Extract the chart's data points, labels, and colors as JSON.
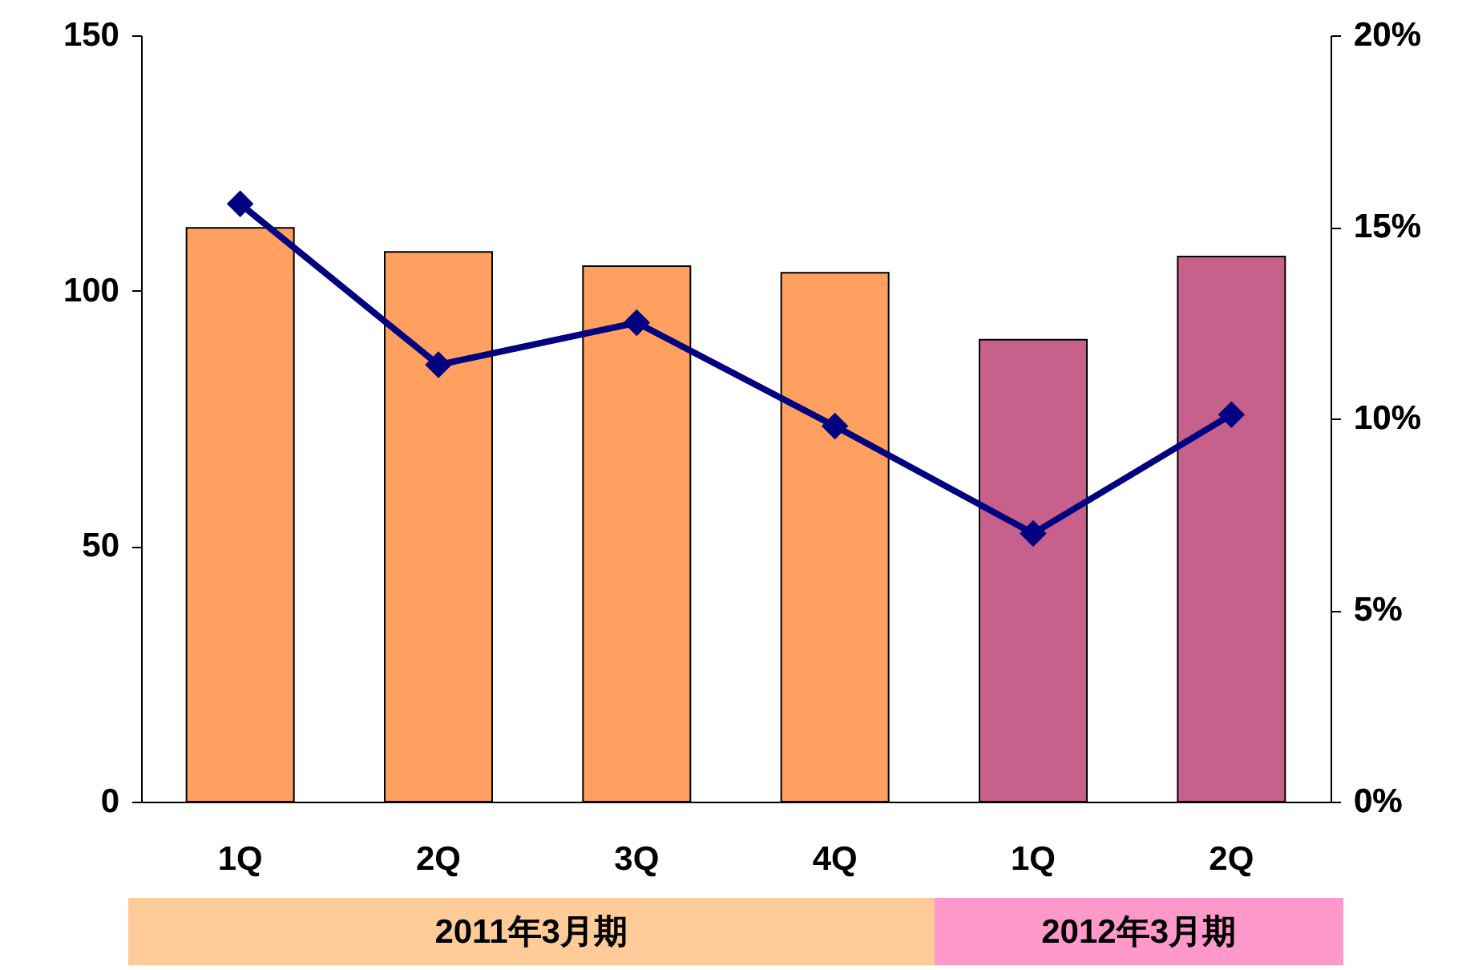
{
  "chart_data": {
    "type": "bar",
    "categories": [
      "1Q",
      "2Q",
      "3Q",
      "4Q",
      "1Q",
      "2Q"
    ],
    "series": [
      {
        "colors": [
          "#ffa060",
          "#ffa060",
          "#ffa060",
          "#ffa060",
          "#c8608c",
          "#c8608c"
        ],
        "values": [
          112.3,
          107.6,
          104.8,
          103.5,
          90.4,
          106.7
        ]
      },
      {
        "type": "line",
        "axis": "y2",
        "color": "#000080",
        "marker": "diamond",
        "values": [
          15.6,
          11.4,
          12.5,
          9.8,
          7.0,
          10.1
        ]
      }
    ],
    "ylim": [
      0,
      150
    ],
    "yticks": [
      0,
      50,
      100,
      150
    ],
    "y2lim": [
      0,
      20
    ],
    "y2ticks": [
      {
        "value": 0,
        "label": "0%"
      },
      {
        "value": 5,
        "label": "5%"
      },
      {
        "value": 10,
        "label": "10%"
      },
      {
        "value": 15,
        "label": "15%"
      },
      {
        "value": 20,
        "label": "20%"
      }
    ],
    "annotations": [
      "2011年3月期",
      "2012年3月期"
    ],
    "grid": false
  }
}
